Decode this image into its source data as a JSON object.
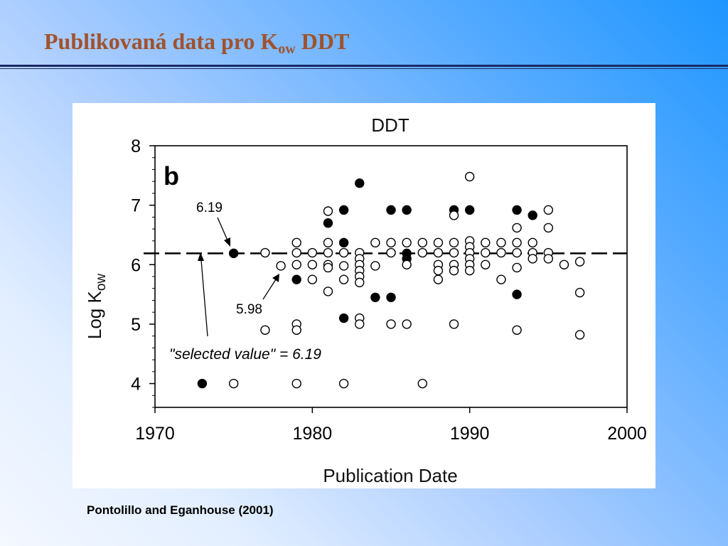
{
  "slide": {
    "title_main": "Publikovaná data pro K",
    "title_sub": "ow",
    "title_end": " DDT",
    "citation": "Pontolillo and Eganhouse (2001)"
  },
  "chart_data": {
    "type": "scatter",
    "title": "DDT",
    "panel_label": "b",
    "xlabel": "Publication Date",
    "ylabel_main": "Log K",
    "ylabel_sub": "ow",
    "xlim": [
      1970,
      2000
    ],
    "ylim": [
      3.6,
      8
    ],
    "xticks": [
      1970,
      1980,
      1990,
      2000
    ],
    "yticks": [
      4,
      5,
      6,
      7,
      8
    ],
    "reference_line": 6.19,
    "annotations": {
      "high_value": "6.19",
      "low_value": "5.98",
      "selected": "\"selected value\" = 6.19"
    },
    "series": [
      {
        "name": "filled",
        "points": [
          [
            1973,
            4.0
          ],
          [
            1975,
            6.19
          ],
          [
            1979,
            5.75
          ],
          [
            1981,
            6.7
          ],
          [
            1982,
            6.92
          ],
          [
            1982,
            6.37
          ],
          [
            1982,
            5.1
          ],
          [
            1983,
            7.37
          ],
          [
            1984,
            5.45
          ],
          [
            1985,
            6.92
          ],
          [
            1985,
            5.45
          ],
          [
            1986,
            6.92
          ],
          [
            1986,
            6.19
          ],
          [
            1986,
            6.1
          ],
          [
            1989,
            6.92
          ],
          [
            1990,
            6.92
          ],
          [
            1993,
            6.92
          ],
          [
            1993,
            5.5
          ],
          [
            1994,
            6.83
          ]
        ]
      },
      {
        "name": "open",
        "points": [
          [
            1975,
            4.0
          ],
          [
            1977,
            6.2
          ],
          [
            1977,
            4.9
          ],
          [
            1978,
            5.98
          ],
          [
            1979,
            6.37
          ],
          [
            1979,
            6.2
          ],
          [
            1979,
            6.0
          ],
          [
            1979,
            5.0
          ],
          [
            1979,
            4.9
          ],
          [
            1979,
            4.0
          ],
          [
            1980,
            6.2
          ],
          [
            1980,
            6.0
          ],
          [
            1980,
            5.75
          ],
          [
            1981,
            6.9
          ],
          [
            1981,
            6.37
          ],
          [
            1981,
            6.2
          ],
          [
            1981,
            6.0
          ],
          [
            1981,
            5.95
          ],
          [
            1981,
            5.55
          ],
          [
            1982,
            6.2
          ],
          [
            1982,
            5.98
          ],
          [
            1982,
            5.75
          ],
          [
            1982,
            4.0
          ],
          [
            1983,
            6.2
          ],
          [
            1983,
            6.1
          ],
          [
            1983,
            6.0
          ],
          [
            1983,
            5.9
          ],
          [
            1983,
            5.8
          ],
          [
            1983,
            5.7
          ],
          [
            1983,
            5.1
          ],
          [
            1983,
            5.0
          ],
          [
            1984,
            6.37
          ],
          [
            1984,
            5.98
          ],
          [
            1985,
            6.37
          ],
          [
            1985,
            6.2
          ],
          [
            1985,
            5.0
          ],
          [
            1986,
            6.37
          ],
          [
            1986,
            6.0
          ],
          [
            1986,
            5.0
          ],
          [
            1987,
            6.37
          ],
          [
            1987,
            6.2
          ],
          [
            1987,
            4.0
          ],
          [
            1988,
            6.37
          ],
          [
            1988,
            6.2
          ],
          [
            1988,
            6.0
          ],
          [
            1988,
            5.9
          ],
          [
            1988,
            5.75
          ],
          [
            1989,
            6.83
          ],
          [
            1989,
            6.37
          ],
          [
            1989,
            6.2
          ],
          [
            1989,
            6.0
          ],
          [
            1989,
            5.9
          ],
          [
            1989,
            5.0
          ],
          [
            1990,
            7.48
          ],
          [
            1990,
            6.4
          ],
          [
            1990,
            6.3
          ],
          [
            1990,
            6.2
          ],
          [
            1990,
            6.1
          ],
          [
            1990,
            6.0
          ],
          [
            1990,
            5.9
          ],
          [
            1991,
            6.37
          ],
          [
            1991,
            6.2
          ],
          [
            1991,
            6.0
          ],
          [
            1992,
            6.37
          ],
          [
            1992,
            6.2
          ],
          [
            1992,
            5.75
          ],
          [
            1993,
            6.62
          ],
          [
            1993,
            6.37
          ],
          [
            1993,
            6.2
          ],
          [
            1993,
            5.95
          ],
          [
            1993,
            4.9
          ],
          [
            1994,
            6.37
          ],
          [
            1994,
            6.2
          ],
          [
            1994,
            6.1
          ],
          [
            1995,
            6.92
          ],
          [
            1995,
            6.62
          ],
          [
            1995,
            6.2
          ],
          [
            1995,
            6.1
          ],
          [
            1996,
            6.0
          ],
          [
            1997,
            6.05
          ],
          [
            1997,
            5.53
          ],
          [
            1997,
            4.82
          ]
        ]
      }
    ]
  }
}
